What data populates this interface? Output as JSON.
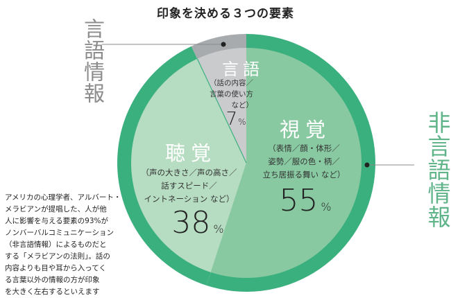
{
  "title": "印象を決める３つの要素",
  "verbal_label": "言語情報",
  "nonverbal_label": "非言語情報",
  "note_lines": [
    "アメリカの心理学者、アルバート・",
    "メラビアンが提唱した、人が他",
    "人に影響を与える要素の93%が",
    "ノンバーバルコミュニケーション",
    "（非言語情報）によるものだと",
    "する「メラビアンの法則」。話の",
    "内容よりも目や耳から入ってく",
    "る言葉以外の情報の方が印象",
    "を大きく左右するといえます"
  ],
  "chart_data": {
    "type": "pie",
    "title": "印象を決める３つの要素",
    "start": "top",
    "direction": "clockwise",
    "slices": [
      {
        "name": "視覚",
        "detail": [
          "（表情／顔・体形／",
          "姿勢／服の色・柄／",
          "立ち居振る舞い など）"
        ],
        "value": 55,
        "unit": "%",
        "color": "#88c9a1",
        "ring_color": "#3bb07f",
        "group": "非言語情報"
      },
      {
        "name": "聴覚",
        "detail": [
          "（声の大きさ／声の高さ／",
          "話すスピード／",
          "イントネーション など）"
        ],
        "value": 38,
        "unit": "%",
        "color": "#b6dcc2",
        "ring_color": "#3bb07f",
        "group": "非言語情報"
      },
      {
        "name": "言語",
        "detail": [
          "（話の内容／",
          "言葉の使い方",
          "など）"
        ],
        "value": 7,
        "unit": "%",
        "color": "#c9cbcd",
        "ring_color": "#a8abae",
        "group": "言語情報"
      }
    ]
  }
}
